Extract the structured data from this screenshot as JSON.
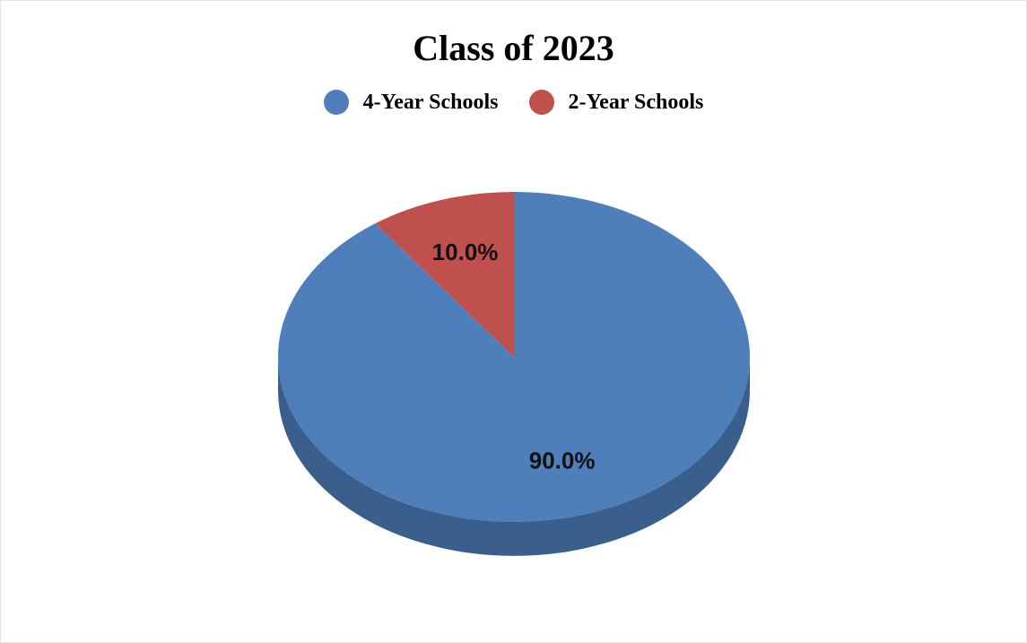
{
  "chart_data": {
    "type": "pie",
    "title": "Class of 2023",
    "legend_position": "top",
    "three_d": true,
    "slices": [
      {
        "name": "4-Year Schools",
        "value": 90.0,
        "label": "90.0%",
        "color": "#4e7fba",
        "side_color": "#3b5f8c"
      },
      {
        "name": "2-Year Schools",
        "value": 10.0,
        "label": "10.0%",
        "color": "#c0504d",
        "side_color": "#8f3b39"
      }
    ]
  }
}
